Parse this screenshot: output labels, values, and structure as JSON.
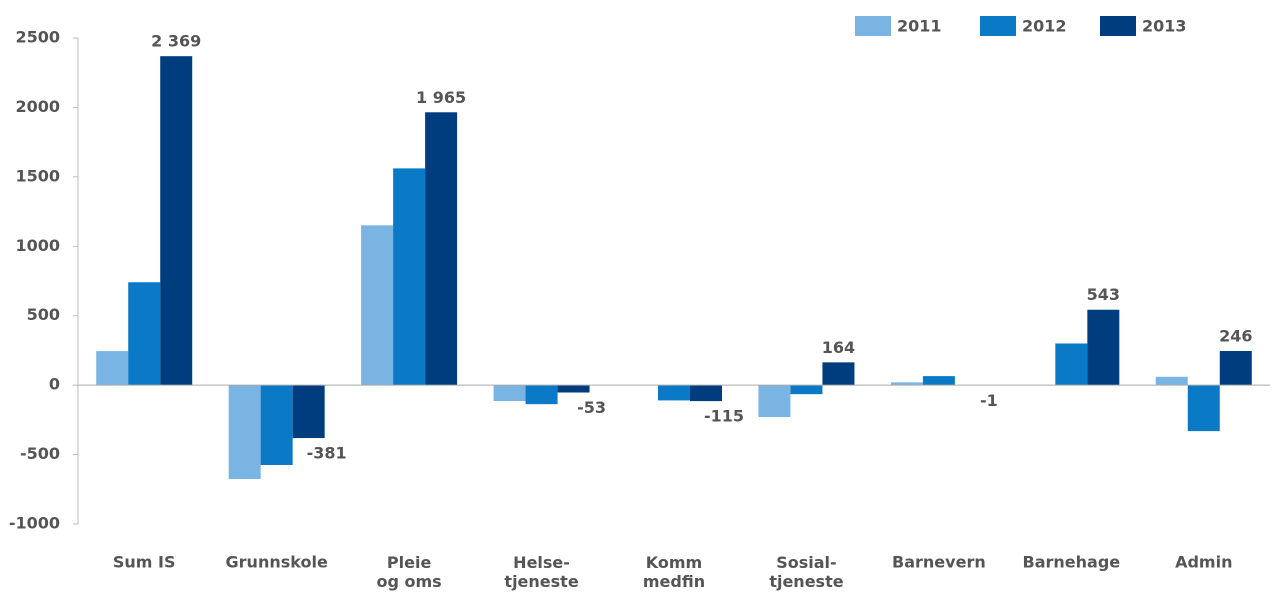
{
  "chart_data": {
    "type": "bar",
    "categories": [
      "Sum IS",
      "Grunnskole",
      "Pleie\nog oms",
      "Helse-\ntjeneste",
      "Komm\nmedfin",
      "Sosial-\ntjeneste",
      "Barnevern",
      "Barnehage",
      "Admin"
    ],
    "series": [
      {
        "name": "2011",
        "color": "#7ab4e2",
        "values": [
          245,
          -676,
          1151,
          -115,
          0,
          -230,
          20,
          0,
          60
        ]
      },
      {
        "name": "2012",
        "color": "#0a7ac6",
        "values": [
          741,
          -575,
          1561,
          -137,
          -110,
          -65,
          65,
          300,
          -331
        ]
      },
      {
        "name": "2013",
        "color": "#003d7f",
        "values": [
          2369,
          -381,
          1965,
          -53,
          -115,
          164,
          -1,
          543,
          246
        ],
        "value_labels": [
          "2 369",
          "-381",
          "1 965",
          "-53",
          "-115",
          "164",
          "-1",
          "543",
          "246"
        ]
      }
    ],
    "ylim": [
      -1000,
      2500
    ],
    "yticks": [
      -1000,
      -500,
      0,
      500,
      1000,
      1500,
      2000,
      2500
    ],
    "legend": "top-right"
  }
}
